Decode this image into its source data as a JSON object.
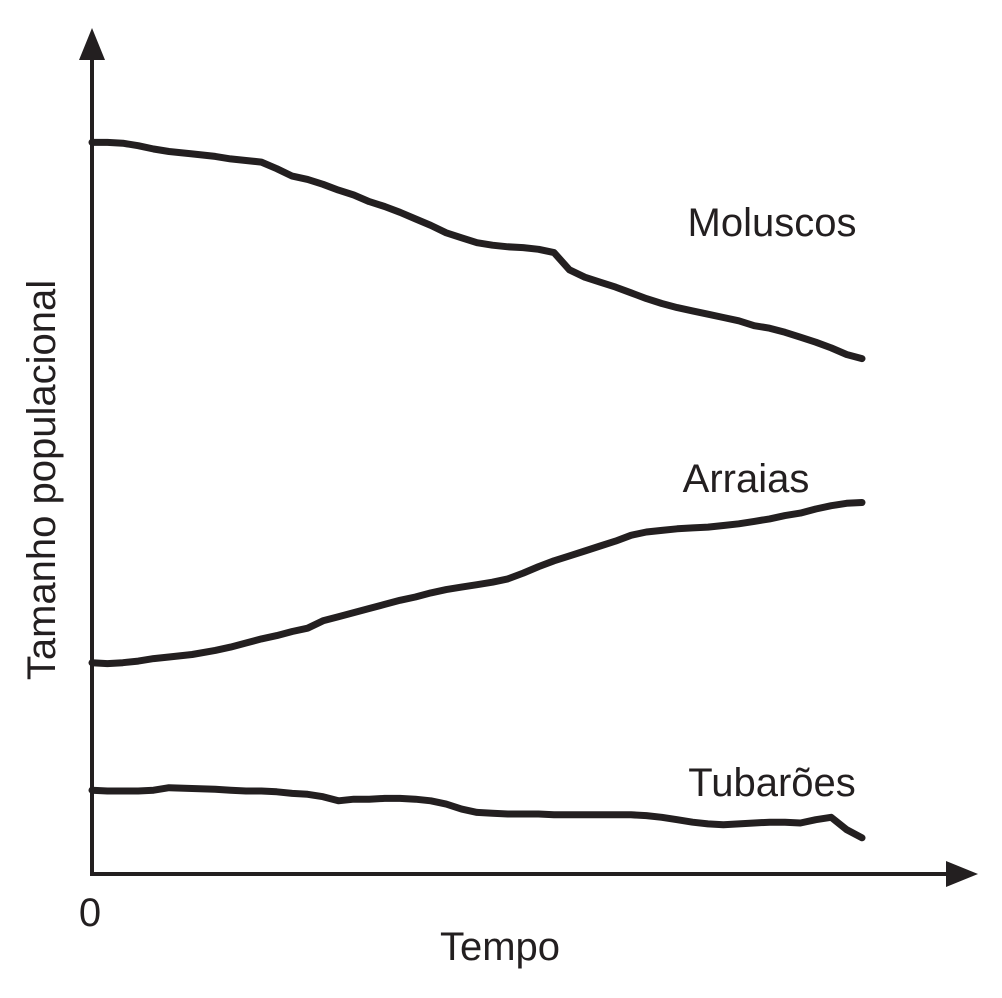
{
  "chart_data": {
    "type": "line",
    "title": "",
    "xlabel": "Tempo",
    "ylabel": "Tamanho populacional",
    "origin_label": "0",
    "axis_color": "#231f20",
    "line_color": "#231f20",
    "xlim": [
      0,
      100
    ],
    "ylim": [
      0,
      100
    ],
    "x": [
      0,
      2,
      4,
      6,
      8,
      10,
      13,
      16,
      18,
      20,
      22,
      24,
      26,
      28,
      30,
      32,
      34,
      36,
      38,
      40,
      42,
      44,
      46,
      48,
      50,
      52,
      54,
      56,
      58,
      60,
      62,
      64,
      66,
      68,
      70,
      72,
      74,
      76,
      78,
      80,
      82,
      84,
      86,
      88,
      90,
      92,
      94,
      96,
      98,
      100
    ],
    "series": [
      {
        "name": "Moluscos",
        "values": [
          89.0,
          89.0,
          88.9,
          88.6,
          88.2,
          87.9,
          87.6,
          87.3,
          87.0,
          86.8,
          86.6,
          85.8,
          84.9,
          84.5,
          83.9,
          83.2,
          82.6,
          81.8,
          81.2,
          80.5,
          79.7,
          78.9,
          78.0,
          77.4,
          76.8,
          76.5,
          76.3,
          76.2,
          76.0,
          75.6,
          73.5,
          72.6,
          72.0,
          71.4,
          70.7,
          70.0,
          69.4,
          68.9,
          68.5,
          68.1,
          67.7,
          67.3,
          66.7,
          66.4,
          65.9,
          65.3,
          64.7,
          64.0,
          63.2,
          62.7
        ]
      },
      {
        "name": "Arraias",
        "values": [
          25.7,
          25.6,
          25.7,
          25.9,
          26.2,
          26.4,
          26.7,
          27.2,
          27.6,
          28.1,
          28.6,
          29.0,
          29.5,
          29.9,
          30.8,
          31.3,
          31.8,
          32.3,
          32.8,
          33.3,
          33.7,
          34.2,
          34.6,
          34.9,
          35.2,
          35.5,
          35.9,
          36.6,
          37.4,
          38.1,
          38.7,
          39.3,
          39.9,
          40.5,
          41.2,
          41.6,
          41.8,
          42.0,
          42.1,
          42.2,
          42.4,
          42.6,
          42.9,
          43.2,
          43.6,
          43.9,
          44.4,
          44.8,
          45.1,
          45.2
        ]
      },
      {
        "name": "Tubarões",
        "values": [
          10.2,
          10.1,
          10.1,
          10.1,
          10.2,
          10.5,
          10.4,
          10.3,
          10.2,
          10.1,
          10.1,
          10.0,
          9.8,
          9.7,
          9.4,
          8.9,
          9.1,
          9.1,
          9.2,
          9.2,
          9.1,
          8.9,
          8.5,
          7.9,
          7.5,
          7.4,
          7.3,
          7.3,
          7.3,
          7.2,
          7.2,
          7.2,
          7.2,
          7.2,
          7.2,
          7.1,
          6.9,
          6.6,
          6.3,
          6.1,
          6.0,
          6.1,
          6.2,
          6.3,
          6.3,
          6.2,
          6.6,
          6.9,
          5.4,
          4.4
        ]
      }
    ]
  }
}
